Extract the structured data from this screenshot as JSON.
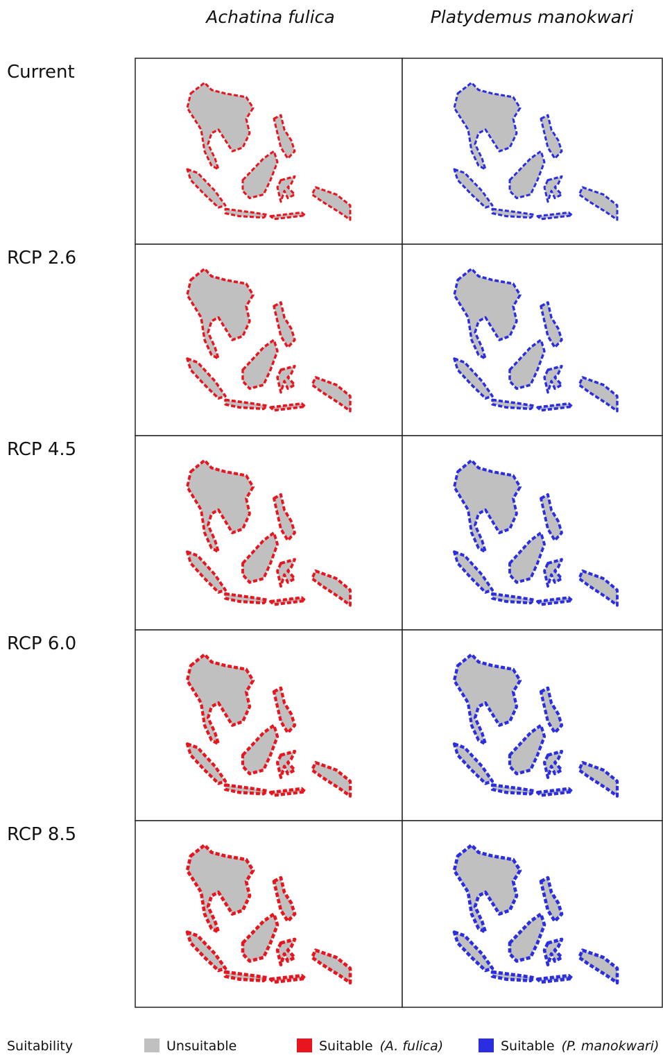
{
  "columns": [
    "Achatina fulica",
    "Platydemus manokwari"
  ],
  "rows": [
    "Current",
    "RCP 2.6",
    "RCP 4.5",
    "RCP 6.0",
    "RCP 8.5"
  ],
  "legend": {
    "title": "Suitability",
    "items": [
      {
        "label": "Unsuitable",
        "color": "#c0c0c0"
      },
      {
        "label": "Suitable",
        "species": "(A. fulica)",
        "color": "#e8141e"
      },
      {
        "label": "Suitable",
        "species": "(P. manokwari)",
        "color": "#2a2ee0"
      }
    ]
  }
}
